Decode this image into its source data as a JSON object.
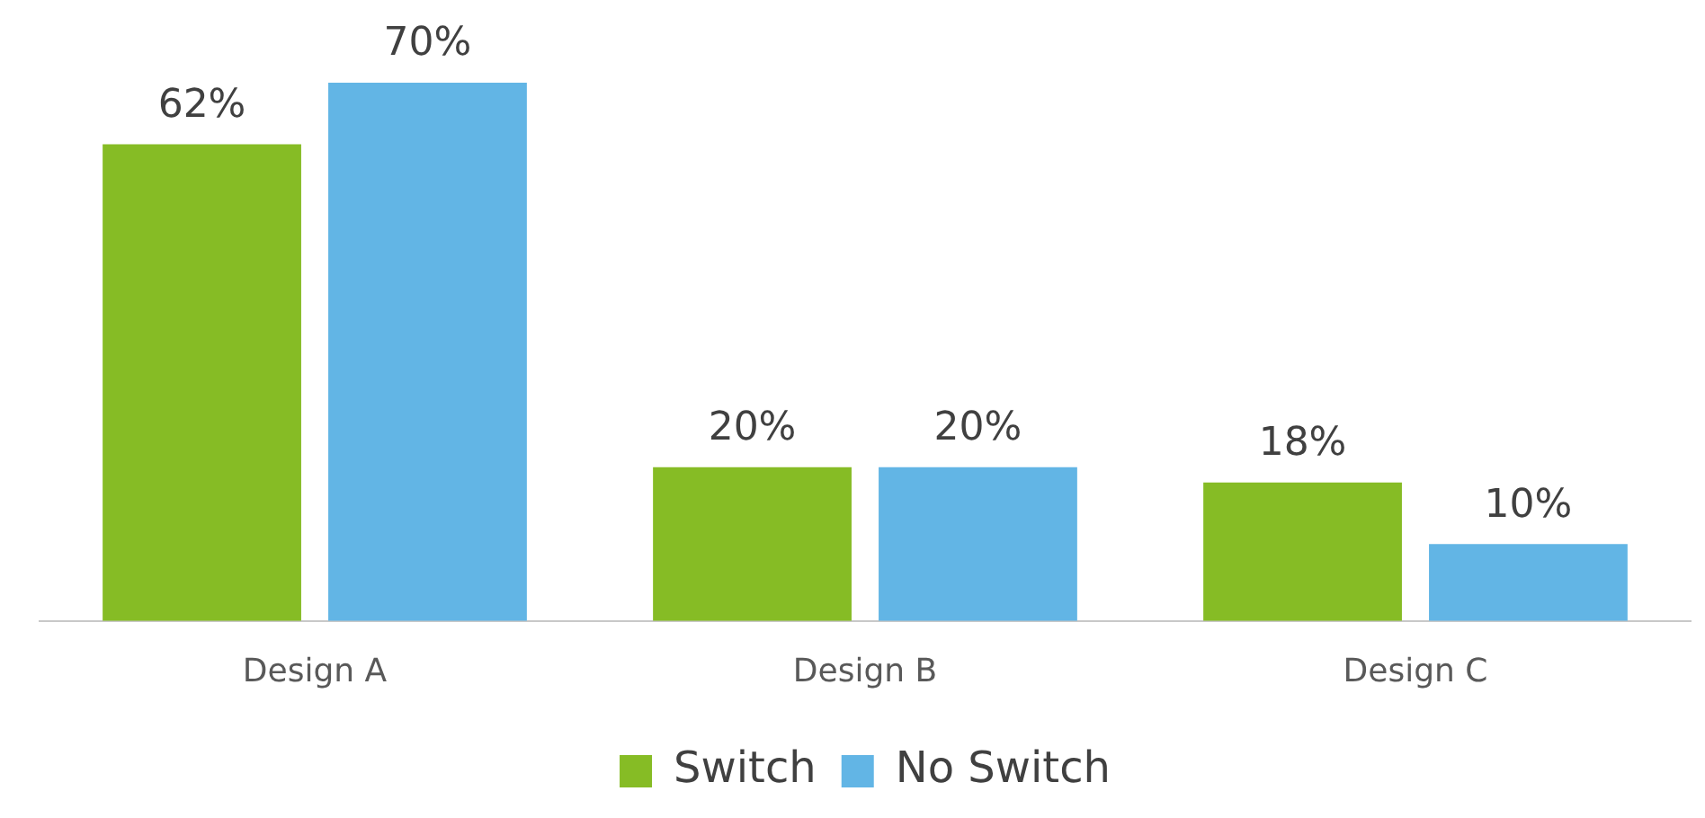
{
  "chart_data": {
    "type": "bar",
    "categories": [
      "Design A",
      "Design B",
      "Design C"
    ],
    "series": [
      {
        "name": "Switch",
        "color": "#86bc25",
        "values": [
          62,
          20,
          18
        ],
        "value_labels": [
          "62%",
          "20%",
          "18%"
        ]
      },
      {
        "name": "No Switch",
        "color": "#62b5e5",
        "values": [
          70,
          20,
          10
        ],
        "value_labels": [
          "70%",
          "20%",
          "10%"
        ]
      }
    ],
    "legend": "bottom",
    "grid": false
  }
}
